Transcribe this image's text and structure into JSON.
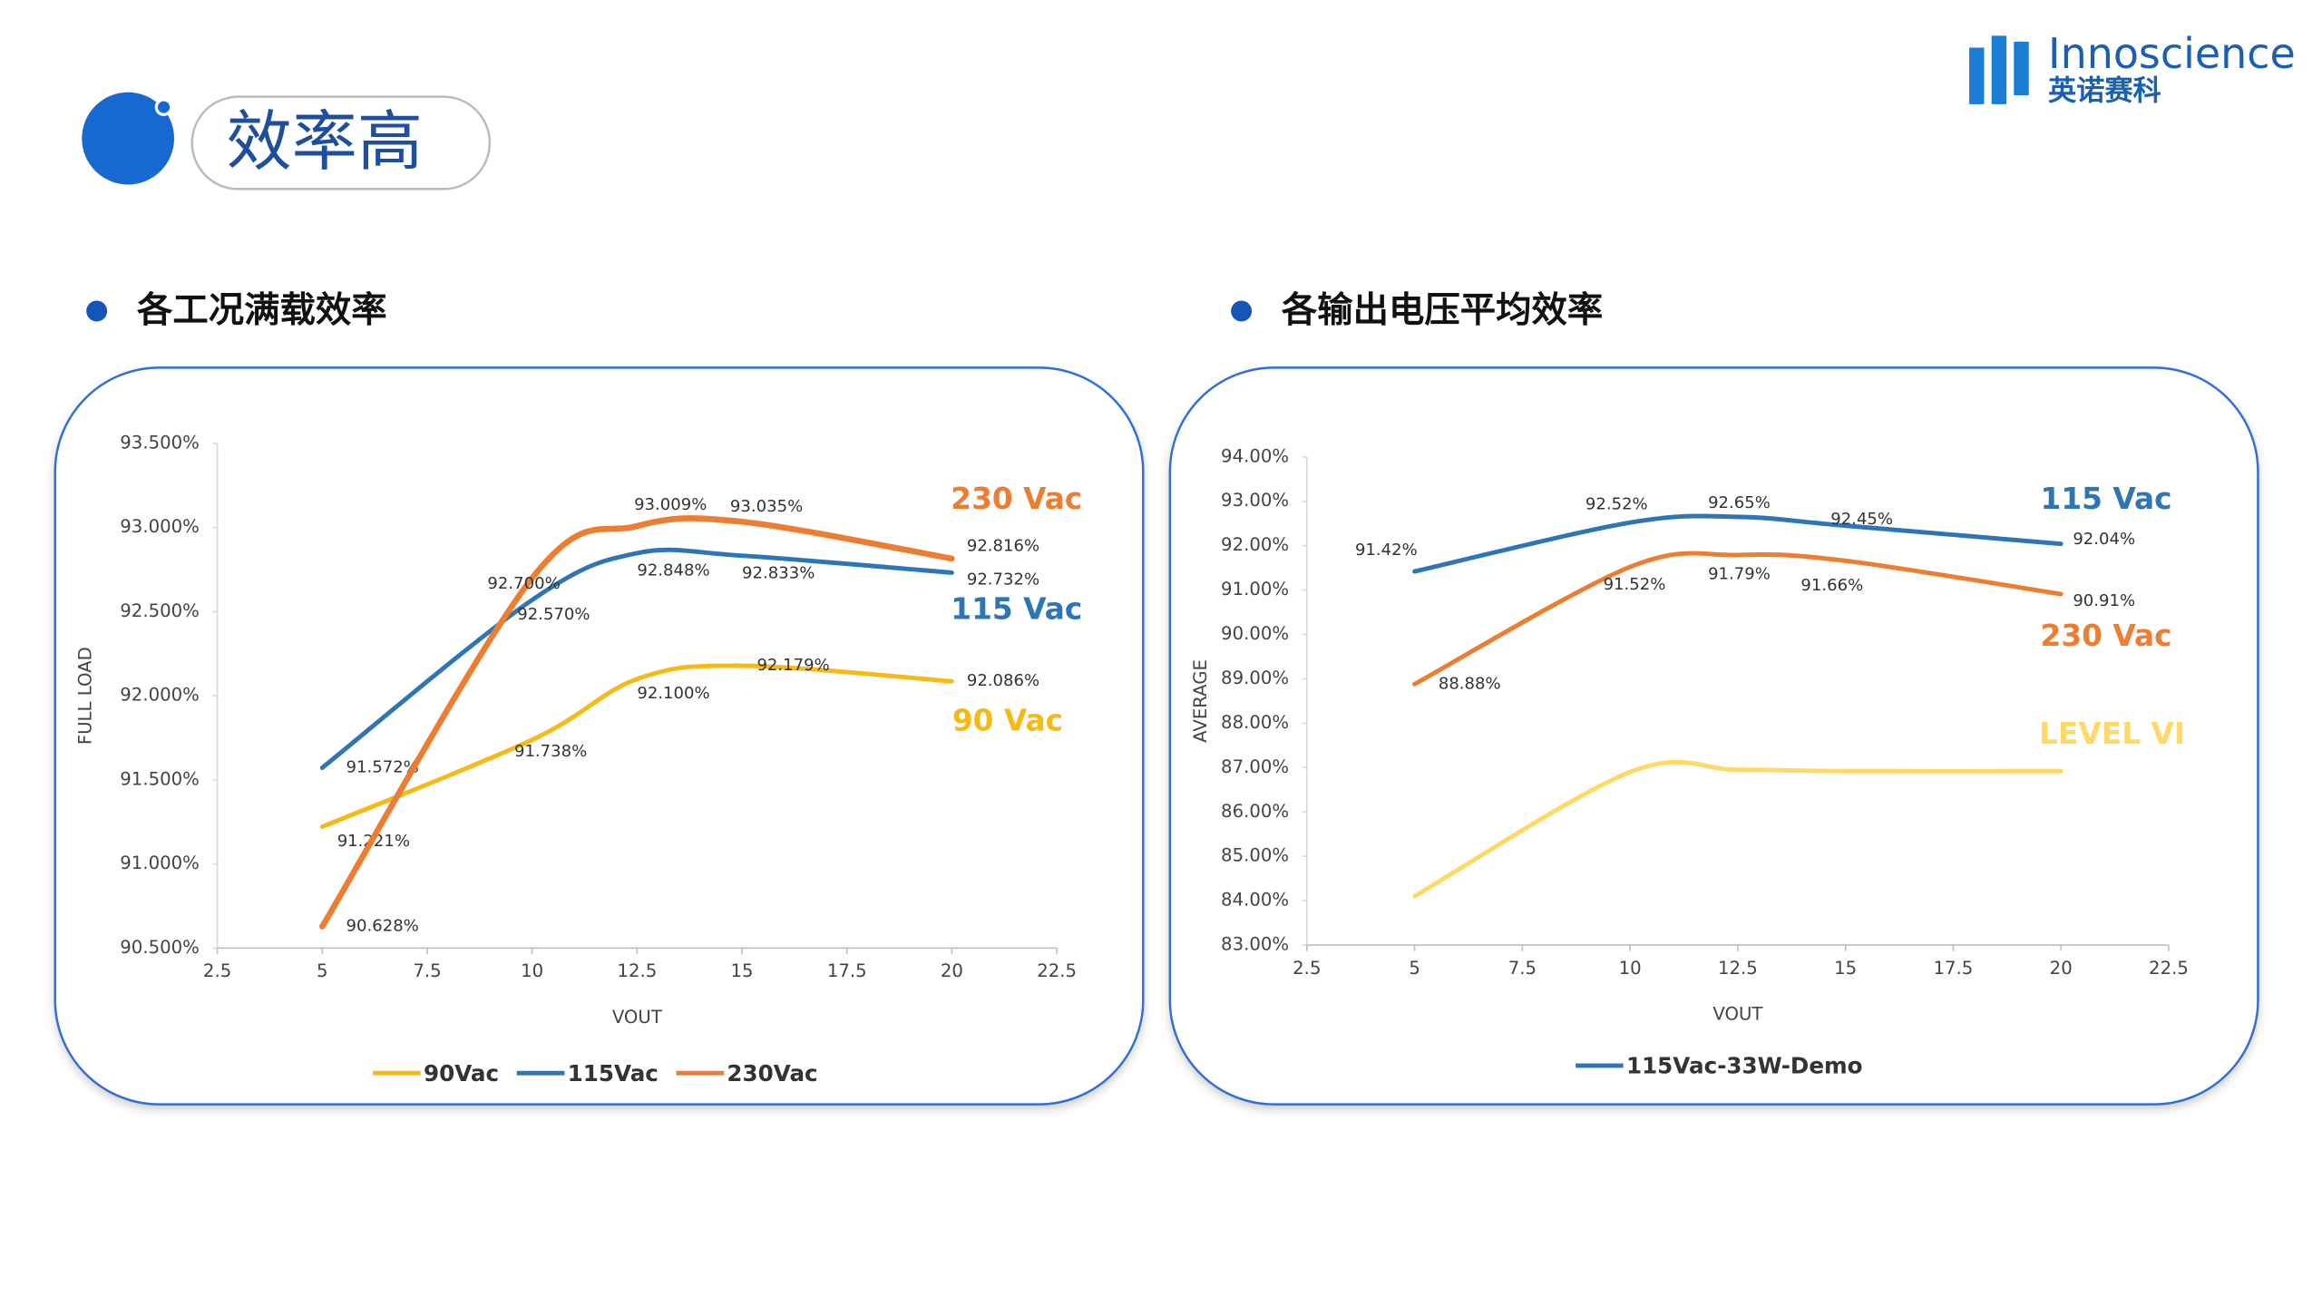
{
  "header": {
    "title": "效率高",
    "logo_text": "Innoscience",
    "logo_subtext": "英诺赛科"
  },
  "chart_data": [
    {
      "type": "line",
      "title": "各工况满载效率",
      "xlabel": "VOUT",
      "ylabel": "FULL LOAD",
      "x": [
        5,
        10,
        12.5,
        15,
        20
      ],
      "xlim": [
        2.5,
        22.5
      ],
      "xticks": [
        2.5,
        5,
        7.5,
        10,
        12.5,
        15,
        17.5,
        20,
        22.5
      ],
      "ylim": [
        90.5,
        93.5
      ],
      "yticks": [
        {
          "value": 90.5,
          "label": "90.500%"
        },
        {
          "value": 91,
          "label": "91.000%"
        },
        {
          "value": 91.5,
          "label": "91.500%"
        },
        {
          "value": 92,
          "label": "92.000%"
        },
        {
          "value": 92.5,
          "label": "92.500%"
        },
        {
          "value": 93,
          "label": "93.000%"
        },
        {
          "value": 93.5,
          "label": "93.500%"
        }
      ],
      "series": [
        {
          "name": "90Vac",
          "label": "90 Vac",
          "color": "#f7b916",
          "values": [
            91.221,
            91.738,
            92.1,
            92.179,
            92.086
          ],
          "value_labels": [
            "91.221%",
            "91.738%",
            "92.100%",
            "92.179%",
            "92.086%"
          ]
        },
        {
          "name": "115Vac",
          "label": "115 Vac",
          "color": "#2e75b6",
          "values": [
            91.572,
            92.57,
            92.848,
            92.833,
            92.732
          ],
          "value_labels": [
            "91.572%",
            "92.570%",
            "92.848%",
            "92.833%",
            "92.732%"
          ]
        },
        {
          "name": "230Vac",
          "label": "230 Vac",
          "color": "#ed7d31",
          "values": [
            90.628,
            92.7,
            93.009,
            93.035,
            92.816
          ],
          "value_labels": [
            "90.628%",
            "92.700%",
            "93.009%",
            "93.035%",
            "92.816%"
          ]
        }
      ]
    },
    {
      "type": "line",
      "title": "各输出电压平均效率",
      "xlabel": "VOUT",
      "ylabel": "AVERAGE",
      "x": [
        5,
        10,
        12.5,
        15,
        20
      ],
      "xlim": [
        2.5,
        22.5
      ],
      "xticks": [
        2.5,
        5,
        7.5,
        10,
        12.5,
        15,
        17.5,
        20,
        22.5
      ],
      "ylim": [
        83,
        94
      ],
      "yticks": [
        {
          "value": 83,
          "label": "83.00%"
        },
        {
          "value": 84,
          "label": "84.00%"
        },
        {
          "value": 85,
          "label": "85.00%"
        },
        {
          "value": 86,
          "label": "86.00%"
        },
        {
          "value": 87,
          "label": "87.00%"
        },
        {
          "value": 88,
          "label": "88.00%"
        },
        {
          "value": 89,
          "label": "89.00%"
        },
        {
          "value": 90,
          "label": "90.00%"
        },
        {
          "value": 91,
          "label": "91.00%"
        },
        {
          "value": 92,
          "label": "92.00%"
        },
        {
          "value": 93,
          "label": "93.00%"
        },
        {
          "value": 94,
          "label": "94.00%"
        }
      ],
      "series": [
        {
          "name": "115Vac-33W-Demo",
          "label": "115 Vac",
          "color": "#2e75b6",
          "values": [
            91.42,
            92.52,
            92.65,
            92.45,
            92.04
          ],
          "value_labels": [
            "91.42%",
            "92.52%",
            "92.65%",
            "92.45%",
            "92.04%"
          ]
        },
        {
          "label": "230 Vac",
          "color": "#ed7d31",
          "values": [
            88.88,
            91.52,
            91.79,
            91.66,
            90.91
          ],
          "value_labels": [
            "88.88%",
            "91.52%",
            "91.79%",
            "91.66%",
            "90.91%"
          ]
        },
        {
          "label": "LEVEL VI",
          "color": "#ffd966",
          "values": [
            84.1,
            86.9,
            86.95,
            86.92,
            86.92
          ]
        }
      ]
    }
  ]
}
